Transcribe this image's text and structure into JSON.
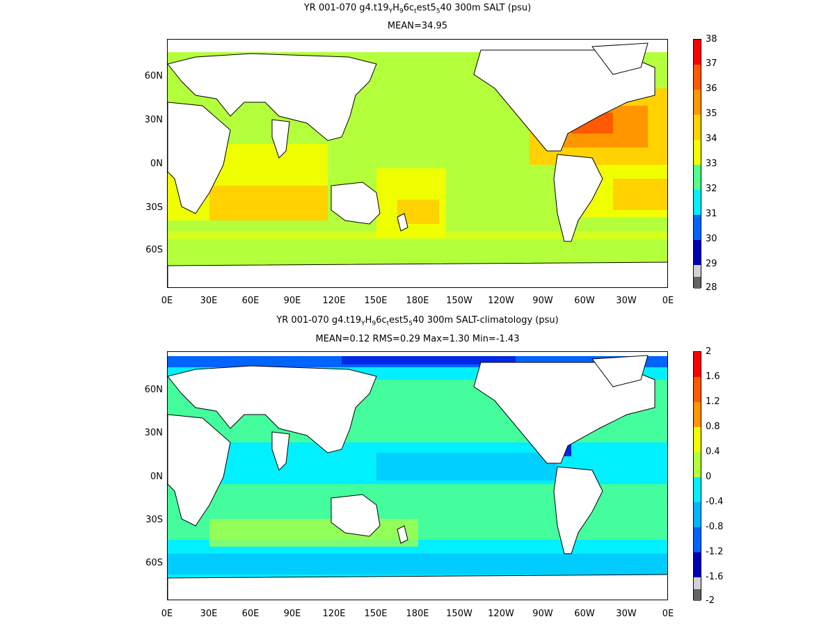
{
  "panel1": {
    "title_prefix": "YR 001-070 g4.t19",
    "title_sub1": "Y",
    "title_mid1": "H",
    "title_sub2": "9",
    "title_mid2": "6c",
    "title_sub3": "t",
    "title_mid3": "est5",
    "title_sub4": "5",
    "title_suffix": "40 300m SALT (psu)",
    "subtitle": "MEAN=34.95",
    "colorbar_labels": [
      "38",
      "37",
      "36",
      "35",
      "34",
      "33",
      "32",
      "31",
      "30",
      "29",
      "28"
    ],
    "colorbar_colors": [
      "#ff0000",
      "#ff5a00",
      "#ff9600",
      "#ffd200",
      "#f0ff00",
      "#b4ff3c",
      "#50ff8c",
      "#00f0ff",
      "#00b4ff",
      "#0064ff",
      "#0028e6",
      "#0000b4",
      "#d2d2d2",
      "#646464"
    ]
  },
  "panel2": {
    "title_prefix": "YR 001-070 g4.t19",
    "title_sub1": "Y",
    "title_mid1": "H",
    "title_sub2": "9",
    "title_mid2": "6c",
    "title_sub3": "t",
    "title_mid3": "est5",
    "title_sub4": "5",
    "title_suffix": "40 300m SALT-climatology (psu)",
    "subtitle": "MEAN=0.12   RMS=0.29   Max=1.30   Min=-1.43",
    "colorbar_labels": [
      "2",
      "1.6",
      "1.2",
      "0.8",
      "0.4",
      "0",
      "-0.4",
      "-0.8",
      "-1.2",
      "-1.6",
      "-2"
    ]
  },
  "lon_labels": [
    "0E",
    "30E",
    "60E",
    "90E",
    "120E",
    "150E",
    "180E",
    "150W",
    "120W",
    "90W",
    "60W",
    "30W",
    "0E"
  ],
  "lat_labels": [
    "60N",
    "30N",
    "0N",
    "30S",
    "60S"
  ]
}
